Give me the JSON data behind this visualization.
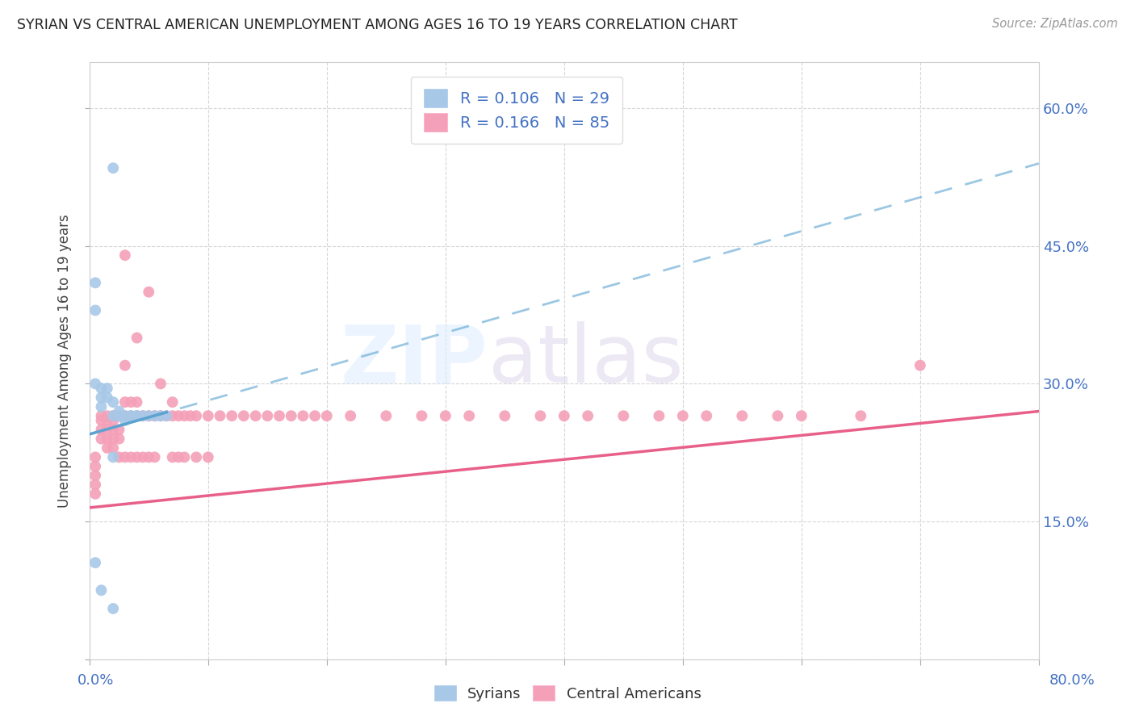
{
  "title": "SYRIAN VS CENTRAL AMERICAN UNEMPLOYMENT AMONG AGES 16 TO 19 YEARS CORRELATION CHART",
  "source": "Source: ZipAtlas.com",
  "ylabel": "Unemployment Among Ages 16 to 19 years",
  "right_yticklabels": [
    "",
    "15.0%",
    "30.0%",
    "45.0%",
    "60.0%"
  ],
  "xmin": 0.0,
  "xmax": 0.8,
  "ymin": 0.0,
  "ymax": 0.65,
  "syrian_R": 0.106,
  "syrian_N": 29,
  "central_R": 0.166,
  "central_N": 85,
  "syrian_color": "#a8c8e8",
  "central_color": "#f4a0b8",
  "syrian_line_color": "#5ba3d0",
  "central_line_color": "#e8608a",
  "syrian_line_x0": 0.0,
  "syrian_line_x1": 0.8,
  "syrian_line_y0": 0.245,
  "syrian_line_y1": 0.54,
  "central_line_x0": 0.0,
  "central_line_x1": 0.8,
  "central_line_y0": 0.165,
  "central_line_y1": 0.27,
  "syrians_x": [
    0.02,
    0.005,
    0.005,
    0.005,
    0.01,
    0.01,
    0.01,
    0.015,
    0.015,
    0.02,
    0.02,
    0.02,
    0.025,
    0.025,
    0.025,
    0.03,
    0.03,
    0.035,
    0.035,
    0.04,
    0.04,
    0.045,
    0.05,
    0.055,
    0.06,
    0.065,
    0.005,
    0.01,
    0.02
  ],
  "syrians_y": [
    0.535,
    0.41,
    0.38,
    0.3,
    0.295,
    0.285,
    0.275,
    0.295,
    0.285,
    0.28,
    0.265,
    0.22,
    0.27,
    0.265,
    0.265,
    0.265,
    0.26,
    0.265,
    0.265,
    0.265,
    0.265,
    0.265,
    0.265,
    0.265,
    0.265,
    0.265,
    0.105,
    0.075,
    0.055
  ],
  "central_x": [
    0.005,
    0.005,
    0.005,
    0.005,
    0.005,
    0.01,
    0.01,
    0.01,
    0.01,
    0.015,
    0.015,
    0.015,
    0.015,
    0.015,
    0.02,
    0.02,
    0.02,
    0.02,
    0.02,
    0.025,
    0.025,
    0.025,
    0.025,
    0.03,
    0.03,
    0.03,
    0.03,
    0.03,
    0.035,
    0.035,
    0.035,
    0.04,
    0.04,
    0.04,
    0.04,
    0.045,
    0.045,
    0.05,
    0.05,
    0.05,
    0.055,
    0.055,
    0.06,
    0.06,
    0.065,
    0.07,
    0.07,
    0.07,
    0.075,
    0.075,
    0.08,
    0.08,
    0.085,
    0.09,
    0.09,
    0.1,
    0.1,
    0.11,
    0.12,
    0.13,
    0.14,
    0.15,
    0.16,
    0.17,
    0.18,
    0.19,
    0.2,
    0.22,
    0.25,
    0.28,
    0.3,
    0.32,
    0.35,
    0.38,
    0.4,
    0.42,
    0.45,
    0.48,
    0.5,
    0.52,
    0.55,
    0.58,
    0.6,
    0.65,
    0.7
  ],
  "central_y": [
    0.22,
    0.21,
    0.2,
    0.19,
    0.18,
    0.265,
    0.26,
    0.25,
    0.24,
    0.265,
    0.26,
    0.25,
    0.24,
    0.23,
    0.265,
    0.26,
    0.25,
    0.24,
    0.23,
    0.265,
    0.25,
    0.24,
    0.22,
    0.44,
    0.32,
    0.28,
    0.265,
    0.22,
    0.28,
    0.265,
    0.22,
    0.35,
    0.28,
    0.265,
    0.22,
    0.265,
    0.22,
    0.4,
    0.265,
    0.22,
    0.265,
    0.22,
    0.3,
    0.265,
    0.265,
    0.265,
    0.28,
    0.22,
    0.265,
    0.22,
    0.265,
    0.22,
    0.265,
    0.265,
    0.22,
    0.265,
    0.22,
    0.265,
    0.265,
    0.265,
    0.265,
    0.265,
    0.265,
    0.265,
    0.265,
    0.265,
    0.265,
    0.265,
    0.265,
    0.265,
    0.265,
    0.265,
    0.265,
    0.265,
    0.265,
    0.265,
    0.265,
    0.265,
    0.265,
    0.265,
    0.265,
    0.265,
    0.265,
    0.265,
    0.32
  ]
}
